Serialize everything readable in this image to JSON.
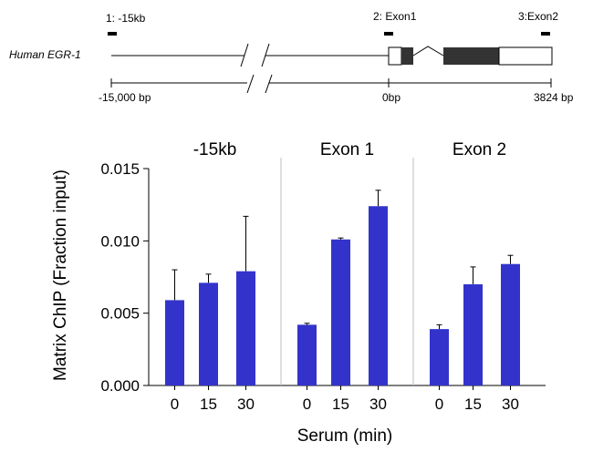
{
  "gene_map": {
    "gene_name": "Human EGR-1",
    "probes": [
      "1: -15kb",
      "2: Exon1",
      "3:Exon2"
    ],
    "scale_labels": [
      "-15,000  bp",
      "0bp",
      "3824 bp"
    ]
  },
  "colors": {
    "bar": "#3333cc",
    "exon": "#333333"
  },
  "chart_data": {
    "type": "bar",
    "xlabel": "Serum (min)",
    "ylabel": "Matrix ChIP (Fraction input)",
    "ylim": [
      0,
      0.015
    ],
    "yticks": [
      "0.000",
      "0.005",
      "0.010",
      "0.015"
    ],
    "grid": false,
    "panels": [
      {
        "title": "-15kb",
        "categories": [
          "0",
          "15",
          "30"
        ],
        "values": [
          0.0059,
          0.0071,
          0.0079
        ],
        "errors": [
          0.0021,
          0.0006,
          0.0038
        ]
      },
      {
        "title": "Exon 1",
        "categories": [
          "0",
          "15",
          "30"
        ],
        "values": [
          0.0042,
          0.0101,
          0.0124
        ],
        "errors": [
          0.0001,
          0.0001,
          0.0011
        ]
      },
      {
        "title": "Exon 2",
        "categories": [
          "0",
          "15",
          "30"
        ],
        "values": [
          0.0039,
          0.007,
          0.0084
        ],
        "errors": [
          0.0003,
          0.0012,
          0.0006
        ]
      }
    ]
  }
}
